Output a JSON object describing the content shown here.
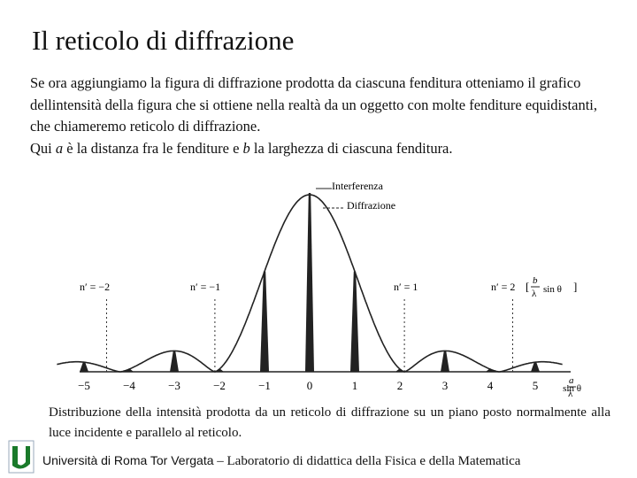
{
  "slide": {
    "title": "Il reticolo di diffrazione",
    "paragraph": [
      "Se ora aggiungiamo la figura di diffrazione prodotta da ciascuna fenditura otteniamo il grafico dellintensità della figura che si ottiene nella realtà da un oggetto con molte fenditure equidistanti, che chiameremo reticolo di diffrazione."
    ],
    "second_line": [
      "Qui ",
      "a",
      " è la distanza fra le fenditure e ",
      "b",
      " la larghezza di ciascuna fenditura."
    ],
    "figure": {
      "legend": [
        "Interferenza",
        "Diffrazione"
      ],
      "orders": [
        "n′ = −2",
        "n′ = −1",
        "n′ = 1",
        "n′ = 2"
      ],
      "order_formula": {
        "fraction_top": "b",
        "fraction_bottom": "λ",
        "tail": "sin θ"
      },
      "ticks": [
        "−5",
        "−4",
        "−3",
        "−2",
        "−1",
        "0",
        "1",
        "2",
        "3",
        "4",
        "5"
      ],
      "axis_label": {
        "top": "a",
        "bottom": "λ",
        "tail": "sin θ"
      }
    },
    "caption": "Distribuzione della intensità prodotta da un reticolo di diffrazione su un piano posto normalmente alla luce incidente e parallelo al reticolo.",
    "footer": {
      "university": "Università di Roma Tor Vergata",
      "separator": "–",
      "lab": "Laboratorio di didattica della Fisica e della Matematica"
    }
  }
}
